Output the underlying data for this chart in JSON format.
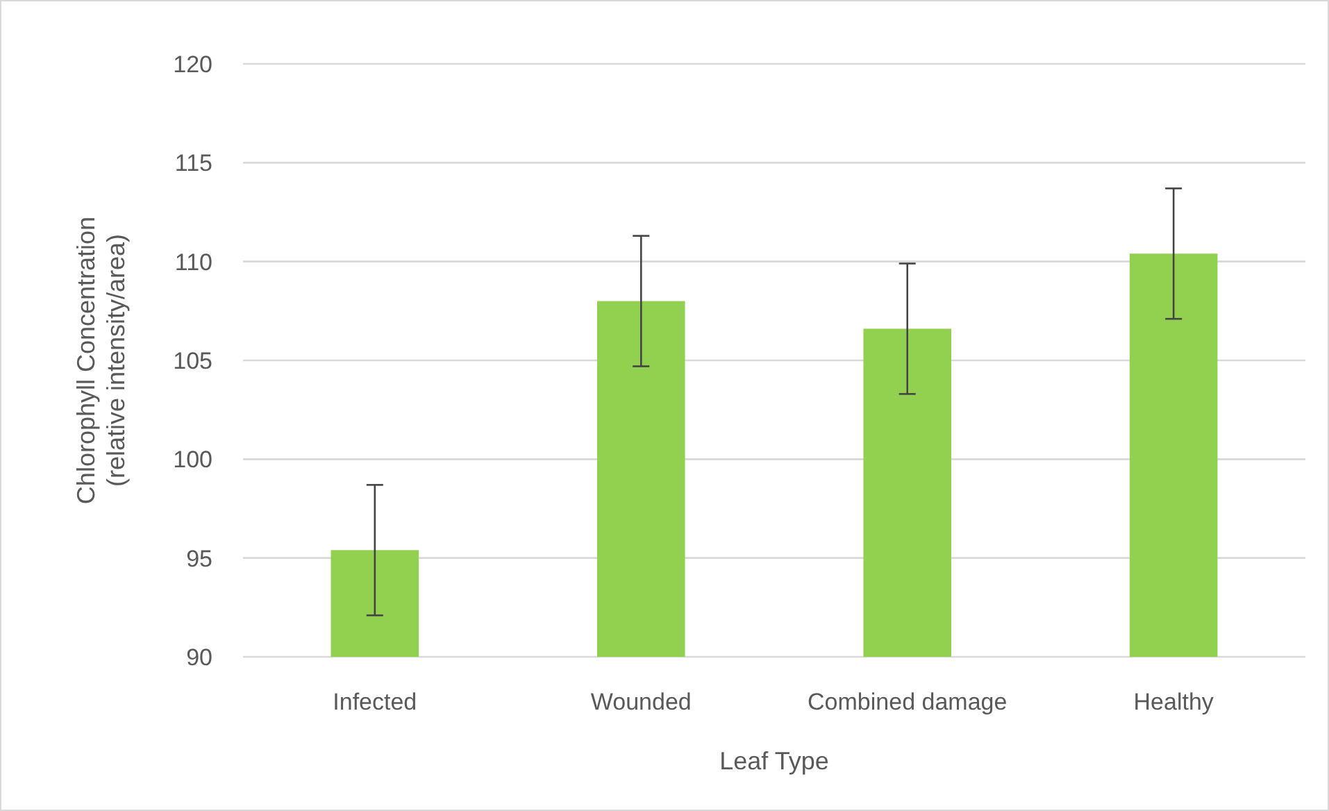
{
  "chart_data": {
    "type": "bar",
    "xlabel": "Leaf Type",
    "ylabel": "Chlorophyll Concentration\n(relative intensity/area)",
    "categories": [
      "Infected",
      "Wounded",
      "Combined damage",
      "Healthy"
    ],
    "values": [
      95.4,
      108.0,
      106.6,
      110.4
    ],
    "errors": [
      3.3,
      3.3,
      3.3,
      3.3
    ],
    "color": "#92d050",
    "ylim": [
      90,
      120
    ],
    "yticks": [
      90,
      95,
      100,
      105,
      110,
      115,
      120
    ],
    "grid": "y"
  }
}
